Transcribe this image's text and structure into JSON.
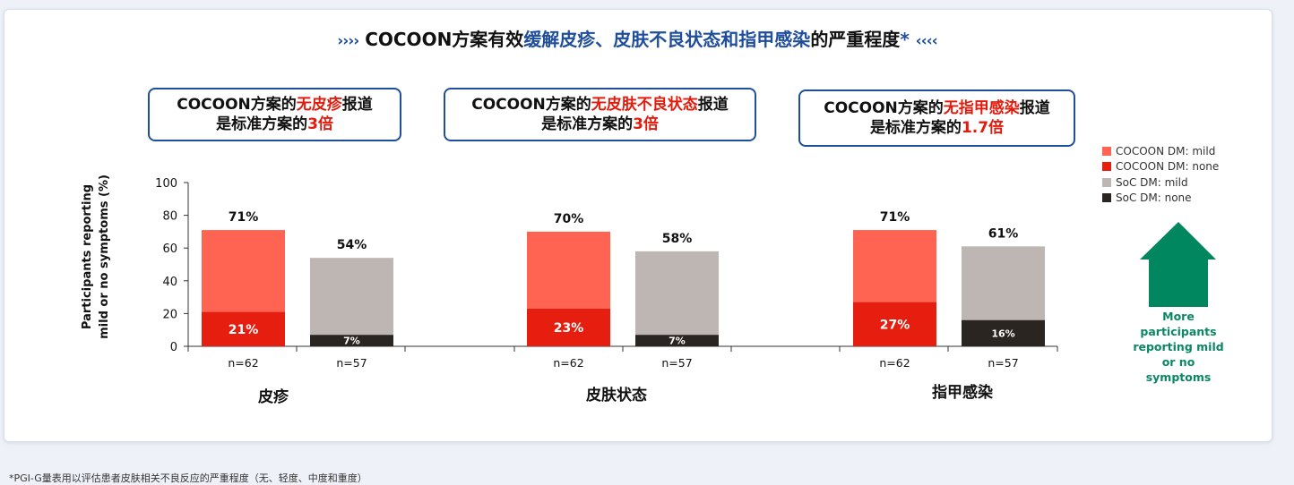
{
  "title": {
    "arrows_left": "››››",
    "prefix": "COCOON方案有效",
    "highlight": "缓解皮疹、皮肤不良状态和指甲感染",
    "suffix": "的严重程度",
    "asterisk": "*",
    "arrows_right": "‹‹‹‹"
  },
  "callouts": [
    {
      "l1_a": "COCOON方案的",
      "l1_red": "无皮疹",
      "l1_b": "报道",
      "l2_a": "是标准方案的",
      "l2_red": "3倍"
    },
    {
      "l1_a": "COCOON方案的",
      "l1_red": "无皮肤不良状态",
      "l1_b": "报道",
      "l2_a": "是标准方案的",
      "l2_red": "3倍"
    },
    {
      "l1_a": "COCOON方案的",
      "l1_red": "无指甲感染",
      "l1_b": "报道",
      "l2_a": "是标准方案的",
      "l2_red": "1.7倍"
    }
  ],
  "legend": [
    {
      "label": "COCOON DM: mild",
      "color": "#ff6452"
    },
    {
      "label": "COCOON DM: none",
      "color": "#e61e0f"
    },
    {
      "label": "SoC DM: mild",
      "color": "#bdb6b3"
    },
    {
      "label": "SoC DM: none",
      "color": "#2b2522"
    }
  ],
  "arrow_note": "More participants reporting mild or no symptoms",
  "arrow_color": "#00875f",
  "footnote": "*PGI-G量表用以评估患者皮肤相关不良反应的严重程度（无、轻度、中度和重度）",
  "chart_data": {
    "type": "bar",
    "stacked": true,
    "ylabel": "Participants reporting mild or no symptoms (%)",
    "ylim": [
      0,
      100
    ],
    "yticks": [
      0,
      20,
      40,
      60,
      80,
      100
    ],
    "groups": [
      {
        "name": "皮疹",
        "bars": [
          {
            "arm": "COCOON",
            "n_label": "n=62",
            "none": 21,
            "total": 71,
            "none_label": "21%",
            "total_label": "71%"
          },
          {
            "arm": "SoC",
            "n_label": "n=57",
            "none": 7,
            "total": 54,
            "none_label": "7%",
            "total_label": "54%"
          }
        ]
      },
      {
        "name": "皮肤状态",
        "bars": [
          {
            "arm": "COCOON",
            "n_label": "n=62",
            "none": 23,
            "total": 70,
            "none_label": "23%",
            "total_label": "70%"
          },
          {
            "arm": "SoC",
            "n_label": "n=57",
            "none": 7,
            "total": 58,
            "none_label": "7%",
            "total_label": "58%"
          }
        ]
      },
      {
        "name": "指甲感染",
        "bars": [
          {
            "arm": "COCOON",
            "n_label": "n=62",
            "none": 27,
            "total": 71,
            "none_label": "27%",
            "total_label": "71%"
          },
          {
            "arm": "SoC",
            "n_label": "n=57",
            "none": 16,
            "total": 61,
            "none_label": "16%",
            "total_label": "61%"
          }
        ]
      }
    ],
    "colors": {
      "COCOON_mild": "#ff6452",
      "COCOON_none": "#e61e0f",
      "SoC_mild": "#bdb6b3",
      "SoC_none": "#2b2522"
    }
  }
}
